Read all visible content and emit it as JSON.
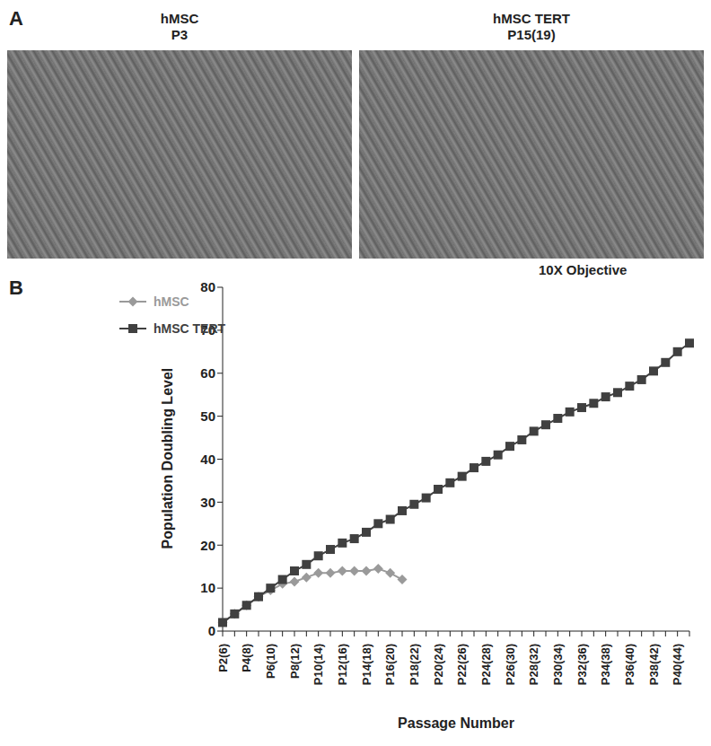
{
  "panel_a": {
    "label": "A",
    "images": [
      {
        "title": "hMSC",
        "subtitle": "P3"
      },
      {
        "title": "hMSC TERT",
        "subtitle": "P15(19)"
      }
    ],
    "note": "10X Objective"
  },
  "panel_b": {
    "label": "B"
  },
  "chart_data": {
    "type": "line",
    "x_label": "Passage Number",
    "y_label": "Population Doubling Level",
    "categories": [
      "P2(6)",
      null,
      "P4(8)",
      null,
      "P6(10)",
      null,
      "P8(12)",
      null,
      "P10(14)",
      null,
      "P12(16)",
      null,
      "P14(18)",
      null,
      "P16(20)",
      null,
      "P18(22)",
      null,
      "P20(24)",
      null,
      "P22(26)",
      null,
      "P24(28)",
      null,
      "P26(30)",
      null,
      "P28(32)",
      null,
      "P30(34)",
      null,
      "P32(36)",
      null,
      "P34(38)",
      null,
      "P36(40)",
      null,
      "P38(42)",
      null,
      "P40(44)",
      null
    ],
    "series": [
      {
        "name": "hMSC",
        "color": "#9a9a9a",
        "marker": "diamond",
        "values": [
          2,
          4,
          6,
          8,
          9.5,
          11,
          11.5,
          12.5,
          13.5,
          13.5,
          14,
          14,
          14,
          14.5,
          13.5,
          12,
          null,
          null,
          null,
          null,
          null,
          null,
          null,
          null,
          null,
          null,
          null,
          null,
          null,
          null,
          null,
          null,
          null,
          null,
          null,
          null,
          null,
          null,
          null,
          null
        ]
      },
      {
        "name": "hMSC TERT",
        "color": "#404040",
        "marker": "square",
        "values": [
          2,
          4,
          6,
          8,
          10,
          12,
          14,
          15.5,
          17.5,
          19,
          20.5,
          21.5,
          23,
          25,
          26,
          28,
          29.5,
          31,
          33,
          34.5,
          36,
          38,
          39.5,
          41,
          43,
          44.5,
          46.5,
          48,
          49.5,
          51,
          52,
          53,
          54.5,
          55.5,
          57,
          58.5,
          60.5,
          62.5,
          65,
          67
        ]
      }
    ],
    "ylim": [
      0,
      80
    ],
    "yticks": [
      0,
      10,
      20,
      30,
      40,
      50,
      60,
      70,
      80
    ],
    "grid": false,
    "legend": "upper left"
  }
}
